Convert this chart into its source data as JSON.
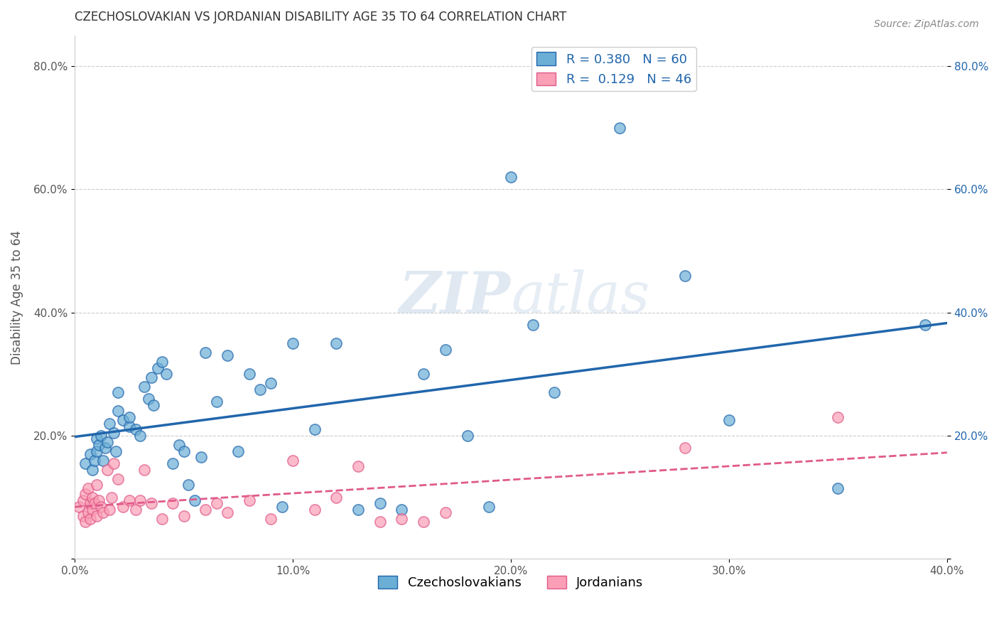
{
  "title": "CZECHOSLOVAKIAN VS JORDANIAN DISABILITY AGE 35 TO 64 CORRELATION CHART",
  "source": "Source: ZipAtlas.com",
  "xlabel": "",
  "ylabel": "Disability Age 35 to 64",
  "xlim": [
    0.0,
    0.4
  ],
  "ylim": [
    0.0,
    0.85
  ],
  "xticks": [
    0.0,
    0.1,
    0.2,
    0.3,
    0.4
  ],
  "yticks": [
    0.0,
    0.2,
    0.4,
    0.6,
    0.8
  ],
  "xticklabels": [
    "0.0%",
    "10.0%",
    "20.0%",
    "30.0%",
    "40.0%"
  ],
  "yticklabels": [
    "",
    "20.0%",
    "40.0%",
    "60.0%",
    "80.0%"
  ],
  "blue_R": "0.380",
  "blue_N": "60",
  "pink_R": "0.129",
  "pink_N": "46",
  "blue_color": "#6baed6",
  "blue_line_color": "#2166ac",
  "pink_color": "#fa9fb5",
  "pink_line_color": "#e05a8a",
  "grid_color": "#cccccc",
  "watermark_zip": "ZIP",
  "watermark_atlas": "atlas",
  "blue_points_x": [
    0.005,
    0.007,
    0.008,
    0.009,
    0.01,
    0.01,
    0.011,
    0.012,
    0.013,
    0.014,
    0.015,
    0.016,
    0.018,
    0.019,
    0.02,
    0.02,
    0.022,
    0.025,
    0.025,
    0.028,
    0.03,
    0.032,
    0.034,
    0.035,
    0.036,
    0.038,
    0.04,
    0.042,
    0.045,
    0.048,
    0.05,
    0.052,
    0.055,
    0.058,
    0.06,
    0.065,
    0.07,
    0.075,
    0.08,
    0.085,
    0.09,
    0.095,
    0.1,
    0.11,
    0.12,
    0.13,
    0.14,
    0.15,
    0.16,
    0.17,
    0.18,
    0.19,
    0.2,
    0.21,
    0.22,
    0.25,
    0.28,
    0.3,
    0.35,
    0.39
  ],
  "blue_points_y": [
    0.155,
    0.17,
    0.145,
    0.16,
    0.175,
    0.195,
    0.185,
    0.2,
    0.16,
    0.18,
    0.19,
    0.22,
    0.205,
    0.175,
    0.24,
    0.27,
    0.225,
    0.215,
    0.23,
    0.21,
    0.2,
    0.28,
    0.26,
    0.295,
    0.25,
    0.31,
    0.32,
    0.3,
    0.155,
    0.185,
    0.175,
    0.12,
    0.095,
    0.165,
    0.335,
    0.255,
    0.33,
    0.175,
    0.3,
    0.275,
    0.285,
    0.085,
    0.35,
    0.21,
    0.35,
    0.08,
    0.09,
    0.08,
    0.3,
    0.34,
    0.2,
    0.085,
    0.62,
    0.38,
    0.27,
    0.7,
    0.46,
    0.225,
    0.115,
    0.38
  ],
  "pink_points_x": [
    0.002,
    0.004,
    0.004,
    0.005,
    0.005,
    0.006,
    0.006,
    0.007,
    0.007,
    0.008,
    0.008,
    0.009,
    0.01,
    0.01,
    0.011,
    0.012,
    0.013,
    0.015,
    0.016,
    0.017,
    0.018,
    0.02,
    0.022,
    0.025,
    0.028,
    0.03,
    0.032,
    0.035,
    0.04,
    0.045,
    0.05,
    0.06,
    0.065,
    0.07,
    0.08,
    0.09,
    0.1,
    0.11,
    0.12,
    0.13,
    0.14,
    0.15,
    0.16,
    0.17,
    0.28,
    0.35
  ],
  "pink_points_y": [
    0.085,
    0.095,
    0.07,
    0.06,
    0.105,
    0.075,
    0.115,
    0.065,
    0.09,
    0.08,
    0.1,
    0.09,
    0.07,
    0.12,
    0.095,
    0.085,
    0.075,
    0.145,
    0.08,
    0.1,
    0.155,
    0.13,
    0.085,
    0.095,
    0.08,
    0.095,
    0.145,
    0.09,
    0.065,
    0.09,
    0.07,
    0.08,
    0.09,
    0.075,
    0.095,
    0.065,
    0.16,
    0.08,
    0.1,
    0.15,
    0.06,
    0.065,
    0.06,
    0.075,
    0.18,
    0.23
  ]
}
